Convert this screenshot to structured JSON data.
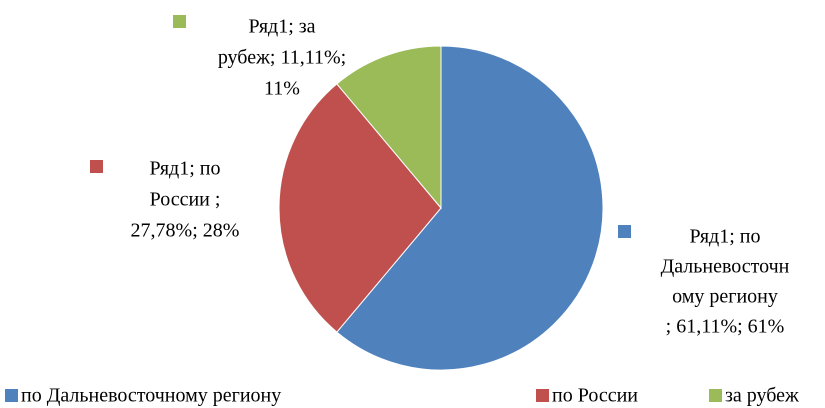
{
  "chart_data": {
    "type": "pie",
    "categories": [
      "по Дальневосточному региону",
      "по России",
      "за рубеж"
    ],
    "values": [
      61.11,
      27.78,
      11.11
    ],
    "value_labels": [
      [
        "Ряд1; по",
        "Дальневосточн",
        "ому региону",
        "; 61,11%; 61%"
      ],
      [
        "Ряд1; по",
        "России ;",
        "27,78%; 28%"
      ],
      [
        "Ряд1; за",
        "рубеж; 11,11%;",
        "11%"
      ]
    ],
    "colors": [
      "#4f81bd",
      "#c0504d",
      "#9bbb59"
    ],
    "legend": "bottom"
  }
}
